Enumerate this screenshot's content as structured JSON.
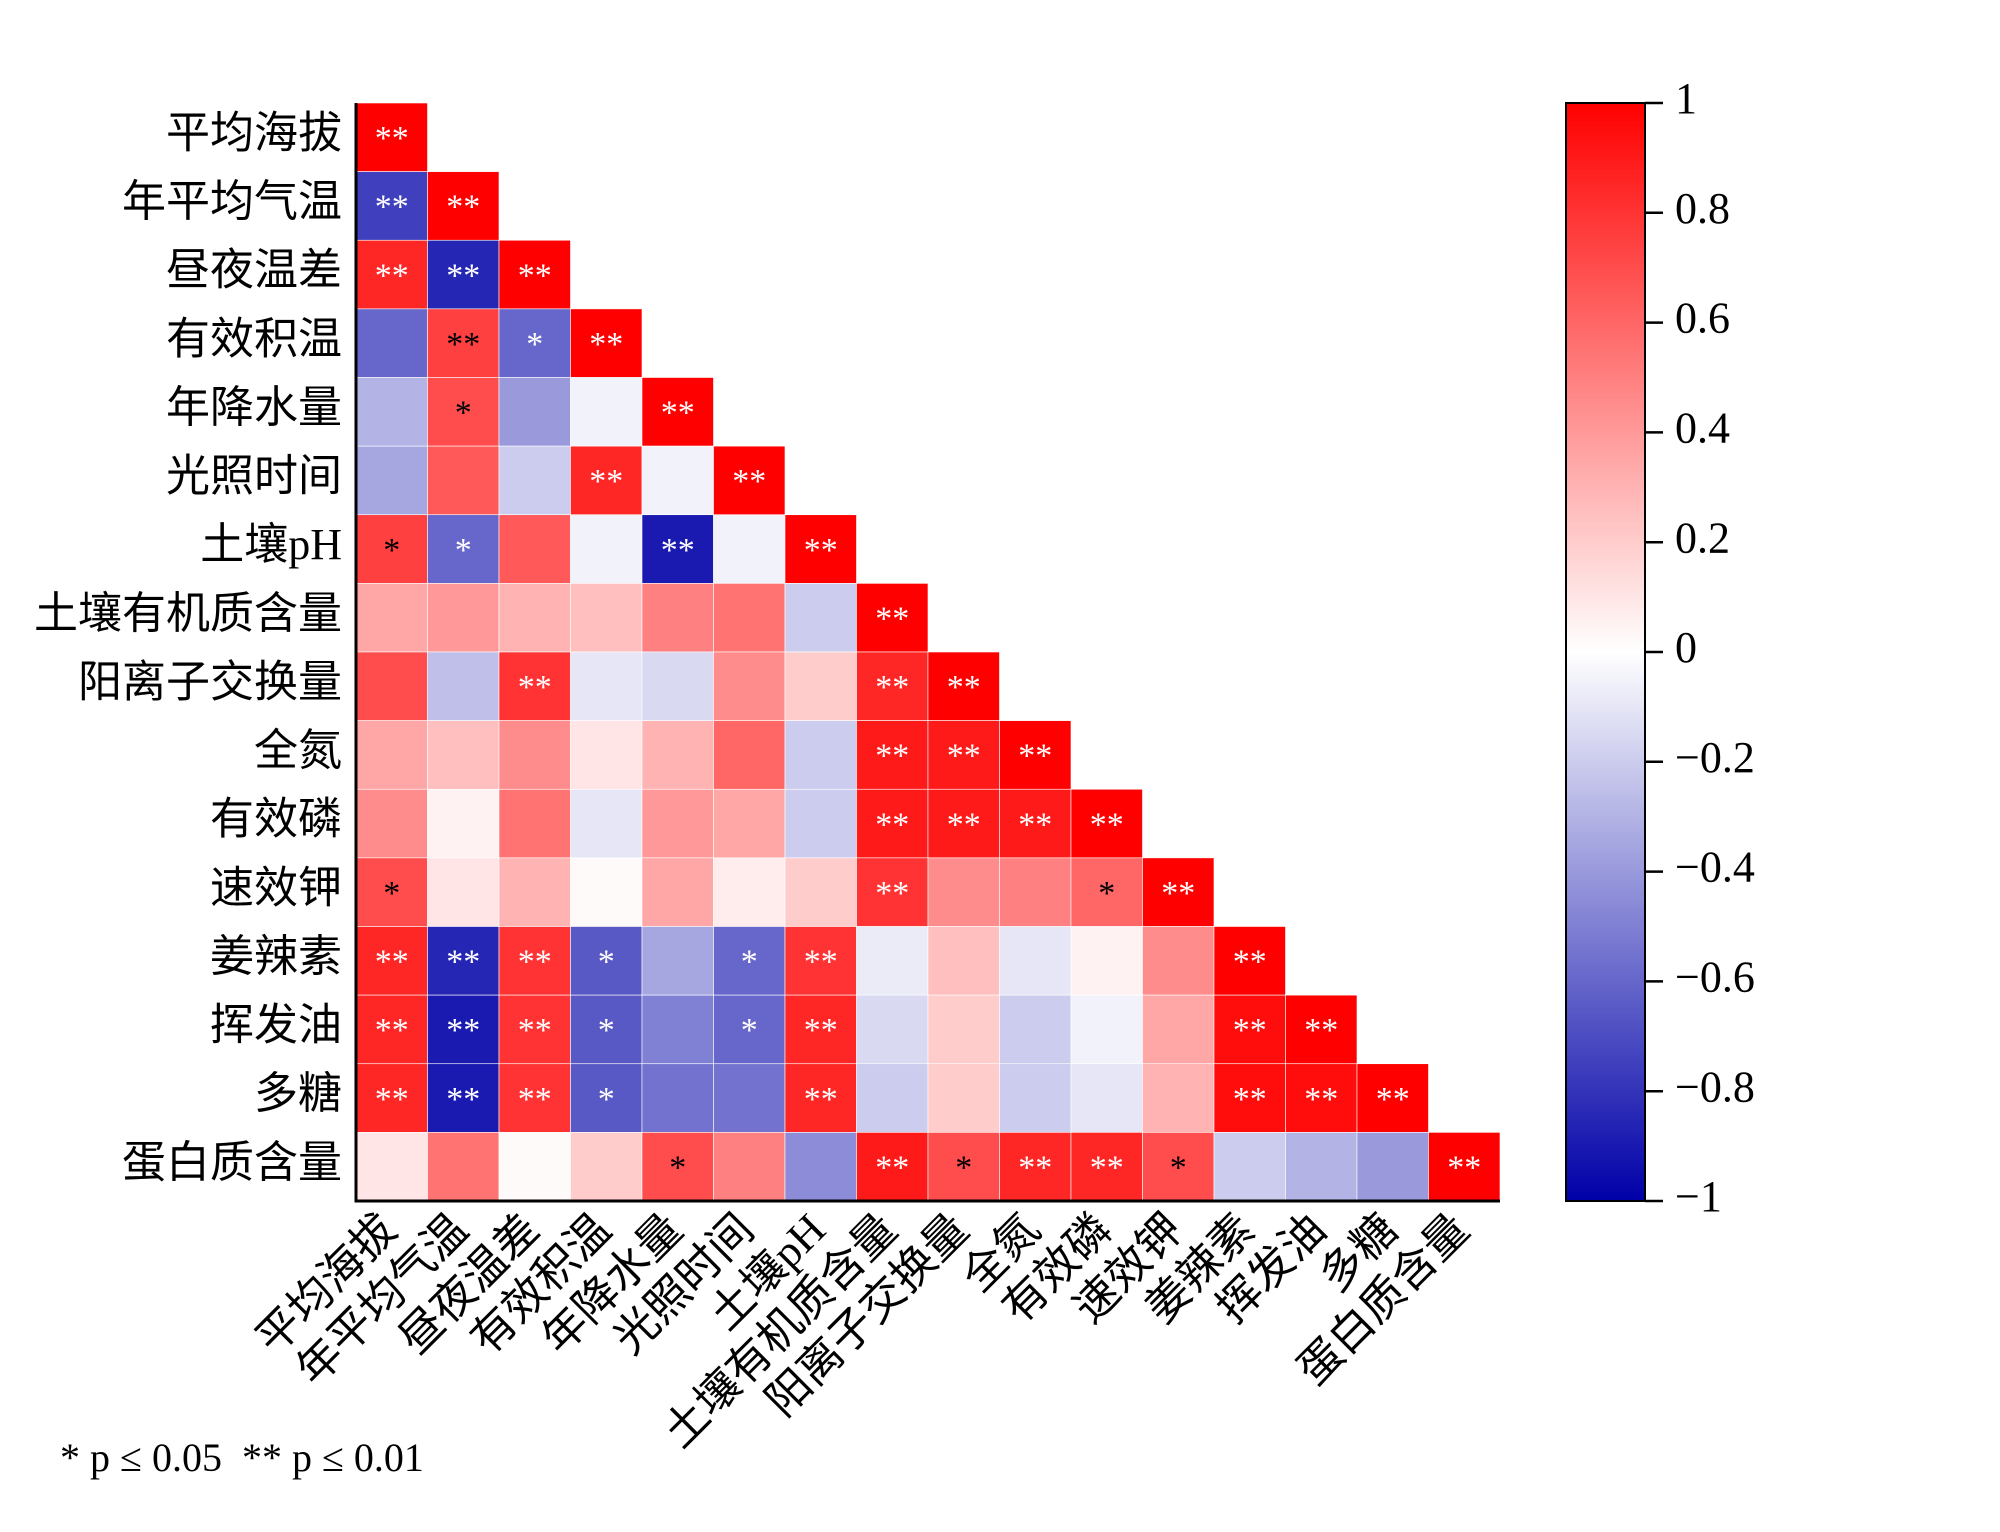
{
  "chart_data": {
    "type": "heatmap",
    "categories": [
      "平均海拔",
      "年平均气温",
      "昼夜温差",
      "有效积温",
      "年降水量",
      "光照时间",
      "土壤pH",
      "土壤有机质含量",
      "阳离子交换量",
      "全氮",
      "有效磷",
      "速效钾",
      "姜辣素",
      "挥发油",
      "多糖",
      "蛋白质含量"
    ],
    "values": [
      [
        1
      ],
      [
        -0.75,
        1
      ],
      [
        0.85,
        -0.85,
        1
      ],
      [
        -0.6,
        0.75,
        -0.6,
        1
      ],
      [
        -0.3,
        0.7,
        -0.4,
        -0.05,
        1
      ],
      [
        -0.35,
        0.65,
        -0.2,
        0.85,
        -0.05,
        1
      ],
      [
        0.75,
        -0.6,
        0.65,
        -0.05,
        -0.9,
        -0.05,
        1
      ],
      [
        0.35,
        0.4,
        0.3,
        0.25,
        0.5,
        0.55,
        -0.2,
        1
      ],
      [
        0.7,
        -0.25,
        0.8,
        -0.1,
        -0.15,
        0.45,
        0.2,
        0.85,
        1
      ],
      [
        0.35,
        0.25,
        0.45,
        0.1,
        0.3,
        0.6,
        -0.2,
        0.9,
        0.9,
        1
      ],
      [
        0.45,
        0.05,
        0.55,
        -0.1,
        0.4,
        0.35,
        -0.2,
        0.9,
        0.9,
        0.9,
        1
      ],
      [
        0.7,
        0.1,
        0.3,
        0.02,
        0.35,
        0.07,
        0.2,
        0.8,
        0.45,
        0.5,
        0.6,
        1
      ],
      [
        0.85,
        -0.85,
        0.8,
        -0.65,
        -0.35,
        -0.6,
        0.8,
        -0.08,
        0.25,
        -0.1,
        0.05,
        0.45,
        1
      ],
      [
        0.85,
        -0.9,
        0.8,
        -0.65,
        -0.5,
        -0.6,
        0.85,
        -0.15,
        0.2,
        -0.2,
        -0.05,
        0.35,
        0.95,
        1
      ],
      [
        0.85,
        -0.9,
        0.8,
        -0.65,
        -0.55,
        -0.55,
        0.85,
        -0.2,
        0.2,
        -0.2,
        -0.1,
        0.3,
        0.95,
        0.95,
        1
      ],
      [
        0.1,
        0.55,
        0.02,
        0.2,
        0.7,
        0.5,
        -0.45,
        0.9,
        0.7,
        0.85,
        0.85,
        0.7,
        -0.2,
        -0.3,
        -0.4,
        1
      ]
    ],
    "labels": [
      [
        "**"
      ],
      [
        "**",
        "**"
      ],
      [
        "**",
        "**",
        "**"
      ],
      [
        null,
        "**",
        "*",
        "**"
      ],
      [
        null,
        "*",
        null,
        null,
        "**"
      ],
      [
        null,
        null,
        null,
        "**",
        null,
        "**"
      ],
      [
        "*",
        "*",
        null,
        null,
        "**",
        null,
        "**"
      ],
      [
        null,
        null,
        null,
        null,
        null,
        null,
        null,
        "**"
      ],
      [
        null,
        null,
        "**",
        null,
        null,
        null,
        null,
        "**",
        "**"
      ],
      [
        null,
        null,
        null,
        null,
        null,
        null,
        null,
        "**",
        "**",
        "**"
      ],
      [
        null,
        null,
        null,
        null,
        null,
        null,
        null,
        "**",
        "**",
        "**",
        "**"
      ],
      [
        "*",
        null,
        null,
        null,
        null,
        null,
        null,
        "**",
        null,
        null,
        "*",
        "**"
      ],
      [
        "**",
        "**",
        "**",
        "*",
        null,
        "*",
        "**",
        null,
        null,
        null,
        null,
        null,
        "**"
      ],
      [
        "**",
        "**",
        "**",
        "*",
        null,
        "*",
        "**",
        null,
        null,
        null,
        null,
        null,
        "**",
        "**"
      ],
      [
        "**",
        "**",
        "**",
        "*",
        null,
        null,
        "**",
        null,
        null,
        null,
        null,
        null,
        "**",
        "**",
        "**"
      ],
      [
        null,
        null,
        null,
        null,
        "*",
        null,
        null,
        "**",
        "*",
        "**",
        "**",
        "*",
        null,
        null,
        null,
        "**"
      ]
    ],
    "colors": {
      "low": "#0000a8",
      "mid": "#ffffff",
      "high": "#ff0000"
    },
    "clim": [
      -1,
      1
    ],
    "cticks": [
      1,
      0.8,
      0.6,
      0.4,
      0.2,
      0,
      {
        "value": -0.2,
        "label": "−0.2"
      },
      {
        "value": -0.4,
        "label": "−0.4"
      },
      {
        "value": -0.6,
        "label": "−0.6"
      },
      {
        "value": -0.8,
        "label": "−0.8"
      },
      {
        "value": -1,
        "label": "−1"
      }
    ],
    "note": "* p ≤ 0.05  ** p ≤ 0.01"
  }
}
